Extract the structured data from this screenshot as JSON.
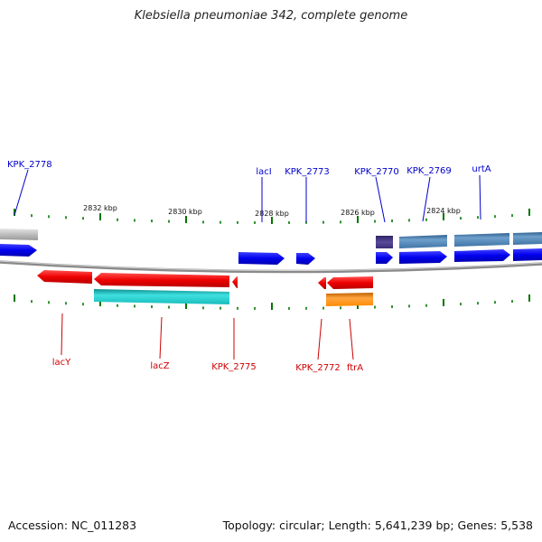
{
  "title": "Klebsiella pneumoniae 342, complete genome",
  "footer": {
    "accession": "Accession: NC_011283",
    "summary": "Topology: circular; Length: 5,641,239 bp; Genes: 5,538"
  },
  "ruler": {
    "labels": [
      "2832 kbp",
      "2830 kbp",
      "2828 kbp",
      "2826 kbp",
      "2824 kbp"
    ]
  },
  "colors": {
    "forward_cds": "#0000ee",
    "reverse_cds": "#ee0000",
    "forward_label": "#0000cc",
    "reverse_label": "#cc0000",
    "backbone": "#8a8a8a",
    "ticks": "#007700",
    "gray_gene": "#bbbbbb",
    "steel_gene": "#4a7fb0",
    "purple_gene": "#4a3a8a",
    "cyan_gene": "#11c4c4",
    "orange_gene": "#ff8a00"
  },
  "labels_top": [
    "KPK_2778",
    "lacI",
    "KPK_2773",
    "KPK_2770",
    "KPK_2769",
    "urtA"
  ],
  "labels_bottom": [
    "lacY",
    "lacZ",
    "KPK_2775",
    "KPK_2772",
    "ftrA"
  ]
}
